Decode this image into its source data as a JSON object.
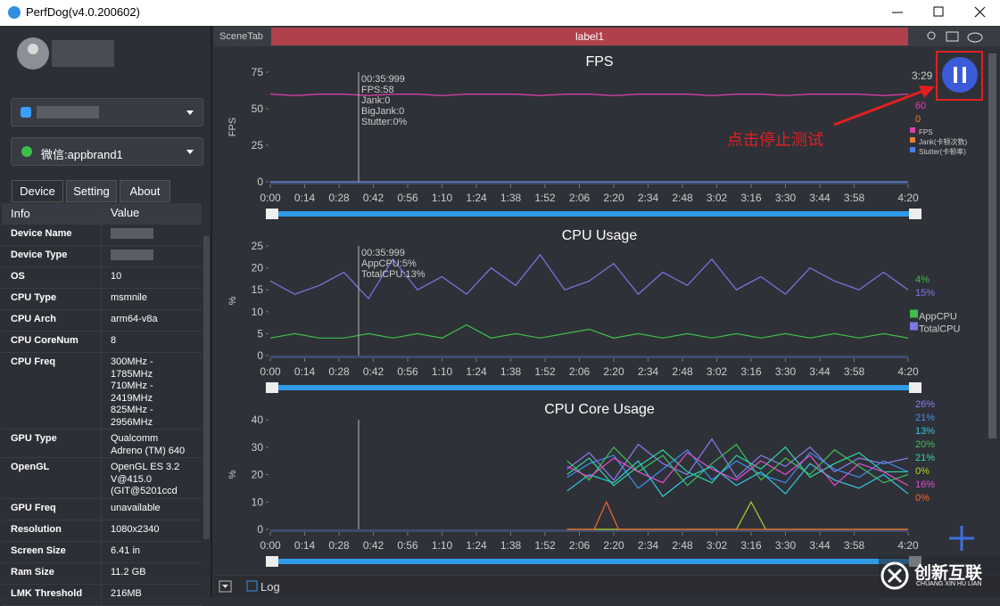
{
  "window": {
    "title": "PerfDog(v4.0.200602)"
  },
  "sidebar": {
    "app": "微信:appbrand1",
    "tabs": [
      "Device",
      "Setting",
      "About"
    ],
    "table": {
      "headers": [
        "Info",
        "Value"
      ],
      "rows": [
        {
          "label": "Device Name",
          "blurred": true
        },
        {
          "label": "Device Type",
          "blurred": true
        },
        {
          "label": "OS",
          "value": [
            "10"
          ]
        },
        {
          "label": "CPU Type",
          "value": [
            "msmnile"
          ]
        },
        {
          "label": "CPU Arch",
          "value": [
            "arm64-v8a"
          ]
        },
        {
          "label": "CPU CoreNum",
          "value": [
            "8"
          ]
        },
        {
          "label": "CPU Freq",
          "value": [
            "300MHz -",
            "1785MHz",
            "710MHz -",
            "2419MHz",
            "825MHz -",
            "2956MHz"
          ]
        },
        {
          "label": "GPU Type",
          "value": [
            "Qualcomm",
            "Adreno (TM) 640"
          ]
        },
        {
          "label": "OpenGL",
          "value": [
            "OpenGL ES 3.2",
            "V@415.0",
            "(GIT@5201ccd"
          ]
        },
        {
          "label": "GPU Freq",
          "value": [
            "unavailable"
          ]
        },
        {
          "label": "Resolution",
          "value": [
            "1080x2340"
          ]
        },
        {
          "label": "Screen Size",
          "value": [
            "6.41 in"
          ]
        },
        {
          "label": "Ram Size",
          "value": [
            "11.2 GB"
          ]
        },
        {
          "label": "LMK Threshold",
          "value": [
            "216MB"
          ]
        }
      ]
    }
  },
  "scene_tab": {
    "label": "SceneTab",
    "tab": "label1"
  },
  "timer": "3:29",
  "annotation": "点击停止测试",
  "log": "Log",
  "watermark": {
    "name": "创新互联",
    "sub": "CHUANG XIN HU LIAN"
  },
  "charts": [
    {
      "type": "line",
      "title": "FPS",
      "y_label": "FPS",
      "xlim": [
        0,
        260
      ],
      "ylim": [
        0,
        75
      ],
      "yticks": [
        0,
        25,
        50,
        75
      ],
      "xticks": [
        {
          "value": 0,
          "label": "0:00"
        },
        {
          "value": 14,
          "label": "0:14"
        },
        {
          "value": 28,
          "label": "0:28"
        },
        {
          "value": 42,
          "label": "0:42"
        },
        {
          "value": 56,
          "label": "0:56"
        },
        {
          "value": 70,
          "label": "1:10"
        },
        {
          "value": 84,
          "label": "1:24"
        },
        {
          "value": 98,
          "label": "1:38"
        },
        {
          "value": 112,
          "label": "1:52"
        },
        {
          "value": 126,
          "label": "2:06"
        },
        {
          "value": 140,
          "label": "2:20"
        },
        {
          "value": 154,
          "label": "2:34"
        },
        {
          "value": 168,
          "label": "2:48"
        },
        {
          "value": 182,
          "label": "3:02"
        },
        {
          "value": 196,
          "label": "3:16"
        },
        {
          "value": 210,
          "label": "3:30"
        },
        {
          "value": 224,
          "label": "3:44"
        },
        {
          "value": 238,
          "label": "3:58"
        },
        {
          "value": 260,
          "label": "4:20"
        }
      ],
      "cursor": {
        "x": 35.999,
        "lines": [
          "00:35:999",
          "FPS:58",
          "Jank:0",
          "BigJank:0",
          "Stutter:0%"
        ]
      },
      "series": [
        {
          "name": "FPS",
          "color": "#e040b0",
          "current": "60",
          "x": [
            0,
            10,
            20,
            30,
            40,
            50,
            60,
            70,
            80,
            90,
            100,
            110,
            120,
            130,
            140,
            150,
            160,
            170,
            180,
            190,
            200,
            210,
            220,
            230,
            240,
            250,
            260
          ],
          "values": [
            60,
            59,
            60,
            60,
            59,
            60,
            60,
            59,
            60,
            60,
            60,
            59,
            60,
            60,
            59,
            60,
            60,
            60,
            59,
            60,
            60,
            59,
            60,
            60,
            60,
            59,
            60
          ]
        },
        {
          "name": "Jank(卡顿次数)",
          "color": "#f08030",
          "current": "0",
          "x": [
            0,
            260
          ],
          "values": [
            0,
            0
          ]
        },
        {
          "name": "Stutter(卡顿率)",
          "color": "#4a7fe0",
          "x": [
            0,
            260
          ],
          "values": [
            0,
            0
          ]
        }
      ]
    },
    {
      "type": "line",
      "title": "CPU Usage",
      "y_label": "%",
      "xlim": [
        0,
        260
      ],
      "ylim": [
        0,
        25
      ],
      "yticks": [
        0,
        5,
        10,
        15,
        20,
        25
      ],
      "xticks": [
        {
          "value": 0,
          "label": "0:00"
        },
        {
          "value": 14,
          "label": "0:14"
        },
        {
          "value": 28,
          "label": "0:28"
        },
        {
          "value": 42,
          "label": "0:42"
        },
        {
          "value": 56,
          "label": "0:56"
        },
        {
          "value": 70,
          "label": "1:10"
        },
        {
          "value": 84,
          "label": "1:24"
        },
        {
          "value": 98,
          "label": "1:38"
        },
        {
          "value": 112,
          "label": "1:52"
        },
        {
          "value": 126,
          "label": "2:06"
        },
        {
          "value": 140,
          "label": "2:20"
        },
        {
          "value": 154,
          "label": "2:34"
        },
        {
          "value": 168,
          "label": "2:48"
        },
        {
          "value": 182,
          "label": "3:02"
        },
        {
          "value": 196,
          "label": "3:16"
        },
        {
          "value": 210,
          "label": "3:30"
        },
        {
          "value": 224,
          "label": "3:44"
        },
        {
          "value": 238,
          "label": "3:58"
        },
        {
          "value": 260,
          "label": "4:20"
        }
      ],
      "cursor": {
        "x": 35.999,
        "lines": [
          "00:35:999",
          "AppCPU:5%",
          "TotalCPU:13%"
        ]
      },
      "series": [
        {
          "name": "AppCPU",
          "color": "#3cbf4a",
          "current": "4%",
          "x": [
            0,
            10,
            20,
            30,
            40,
            50,
            60,
            70,
            80,
            90,
            100,
            110,
            120,
            130,
            140,
            150,
            160,
            170,
            180,
            190,
            200,
            210,
            220,
            230,
            240,
            250,
            260
          ],
          "values": [
            4,
            5,
            4,
            4,
            5,
            4,
            5,
            4,
            7,
            4,
            5,
            4,
            5,
            6,
            4,
            5,
            4,
            5,
            4,
            5,
            4,
            5,
            4,
            5,
            4,
            5,
            4
          ]
        },
        {
          "name": "TotalCPU",
          "color": "#7a78e8",
          "current": "15%",
          "x": [
            0,
            10,
            20,
            30,
            40,
            50,
            60,
            70,
            80,
            90,
            100,
            110,
            120,
            130,
            140,
            150,
            160,
            170,
            180,
            190,
            200,
            210,
            220,
            230,
            240,
            250,
            260
          ],
          "values": [
            17,
            14,
            16,
            19,
            13,
            22,
            15,
            18,
            14,
            20,
            16,
            23,
            15,
            17,
            21,
            14,
            19,
            16,
            22,
            15,
            18,
            14,
            20,
            17,
            15,
            19,
            15
          ]
        }
      ]
    },
    {
      "type": "line",
      "title": "CPU Core Usage",
      "y_label": "%",
      "xlim": [
        0,
        260
      ],
      "ylim": [
        0,
        40
      ],
      "yticks": [
        0,
        10,
        20,
        30,
        40
      ],
      "xticks": [
        {
          "value": 0,
          "label": "0:00"
        },
        {
          "value": 14,
          "label": "0:14"
        },
        {
          "value": 28,
          "label": "0:28"
        },
        {
          "value": 42,
          "label": "0:42"
        },
        {
          "value": 56,
          "label": "0:56"
        },
        {
          "value": 70,
          "label": "1:10"
        },
        {
          "value": 84,
          "label": "1:24"
        },
        {
          "value": 98,
          "label": "1:38"
        },
        {
          "value": 112,
          "label": "1:52"
        },
        {
          "value": 126,
          "label": "2:06"
        },
        {
          "value": 140,
          "label": "2:20"
        },
        {
          "value": 154,
          "label": "2:34"
        },
        {
          "value": 168,
          "label": "2:48"
        },
        {
          "value": 182,
          "label": "3:02"
        },
        {
          "value": 196,
          "label": "3:16"
        },
        {
          "value": 210,
          "label": "3:30"
        },
        {
          "value": 224,
          "label": "3:44"
        },
        {
          "value": 238,
          "label": "3:58"
        },
        {
          "value": 260,
          "label": "4:20"
        }
      ],
      "cursor": {
        "x": 35.999
      },
      "series": [
        {
          "color": "#8a7cf0",
          "current": "26%",
          "x": [
            121,
            130,
            140,
            150,
            160,
            170,
            180,
            190,
            200,
            210,
            220,
            230,
            240,
            250,
            260
          ],
          "values": [
            22,
            28,
            18,
            31,
            24,
            20,
            33,
            19,
            27,
            23,
            30,
            21,
            26,
            24,
            26
          ]
        },
        {
          "color": "#3e8ef0",
          "current": "21%",
          "x": [
            121,
            130,
            140,
            150,
            160,
            170,
            180,
            190,
            200,
            210,
            220,
            230,
            240,
            250,
            260
          ],
          "values": [
            19,
            24,
            27,
            15,
            22,
            29,
            18,
            25,
            20,
            17,
            28,
            22,
            19,
            25,
            21
          ]
        },
        {
          "color": "#35c8e0",
          "current": "13%",
          "x": [
            121,
            130,
            140,
            150,
            160,
            170,
            180,
            190,
            200,
            210,
            220,
            230,
            240,
            250,
            260
          ],
          "values": [
            14,
            20,
            17,
            25,
            12,
            19,
            23,
            16,
            21,
            13,
            24,
            18,
            15,
            20,
            13
          ]
        },
        {
          "color": "#3fbf5a",
          "current": "20%",
          "x": [
            121,
            130,
            140,
            150,
            160,
            170,
            180,
            190,
            200,
            210,
            220,
            230,
            240,
            250,
            260
          ],
          "values": [
            25,
            18,
            30,
            21,
            27,
            16,
            24,
            31,
            18,
            26,
            20,
            29,
            23,
            17,
            20
          ]
        },
        {
          "color": "#2fd6a0",
          "current": "21%",
          "x": [
            121,
            130,
            140,
            150,
            160,
            170,
            180,
            190,
            200,
            210,
            220,
            230,
            240,
            250,
            260
          ],
          "values": [
            20,
            26,
            16,
            23,
            29,
            21,
            17,
            27,
            22,
            30,
            19,
            24,
            28,
            21,
            21
          ]
        },
        {
          "color": "#b6d12a",
          "current": "0%",
          "x": [
            121,
            190,
            196,
            202,
            260
          ],
          "values": [
            0,
            0,
            10,
            0,
            0
          ]
        },
        {
          "color": "#e04fd0",
          "current": "16%",
          "x": [
            121,
            130,
            140,
            150,
            160,
            170,
            180,
            190,
            200,
            210,
            220,
            230,
            240,
            250,
            260
          ],
          "values": [
            23,
            19,
            26,
            21,
            17,
            28,
            22,
            18,
            25,
            20,
            27,
            16,
            24,
            21,
            16
          ]
        },
        {
          "color": "#f06a2a",
          "current": "0%",
          "x": [
            121,
            132,
            137,
            142,
            260
          ],
          "values": [
            0,
            0,
            10,
            0,
            0
          ]
        }
      ]
    }
  ]
}
